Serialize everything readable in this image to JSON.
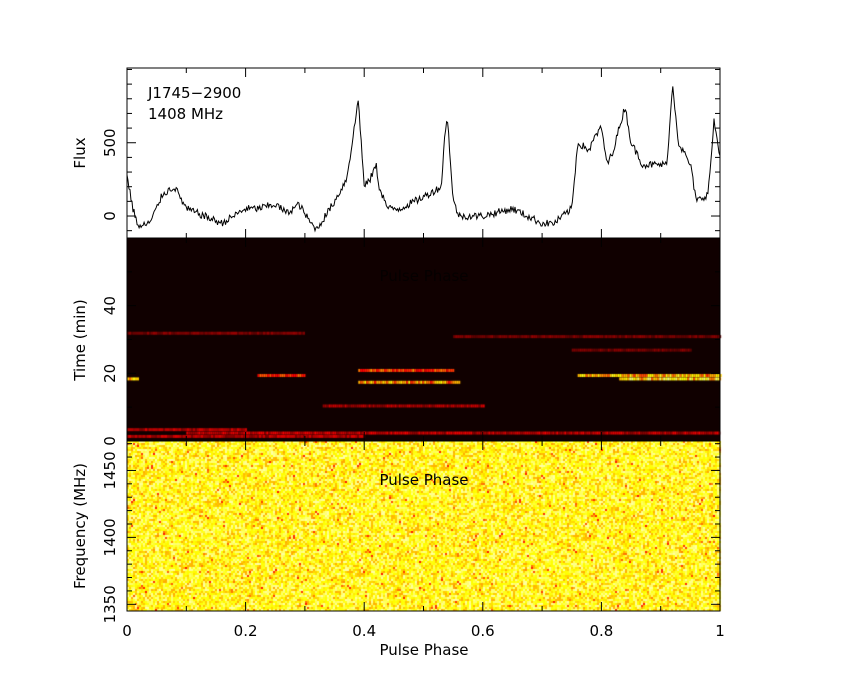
{
  "chart_data": [
    {
      "type": "line",
      "panel": "profile",
      "title_lines": [
        "J1745−2900",
        "1408 MHz"
      ],
      "ylabel": "Flux",
      "xlim": [
        0,
        1
      ],
      "ylim": [
        -150,
        1010
      ],
      "yticks": [
        0,
        500
      ],
      "x": [
        0,
        0.01,
        0.02,
        0.04,
        0.06,
        0.08,
        0.1,
        0.13,
        0.16,
        0.2,
        0.22,
        0.25,
        0.27,
        0.29,
        0.31,
        0.32,
        0.35,
        0.37,
        0.38,
        0.39,
        0.4,
        0.41,
        0.42,
        0.425,
        0.44,
        0.46,
        0.5,
        0.53,
        0.535,
        0.54,
        0.55,
        0.56,
        0.6,
        0.65,
        0.7,
        0.72,
        0.75,
        0.76,
        0.78,
        0.79,
        0.8,
        0.81,
        0.82,
        0.83,
        0.84,
        0.85,
        0.87,
        0.9,
        0.91,
        0.915,
        0.92,
        0.93,
        0.95,
        0.96,
        0.98,
        0.99,
        1.0
      ],
      "values": [
        280,
        50,
        -80,
        -40,
        150,
        200,
        50,
        0,
        -50,
        50,
        50,
        80,
        20,
        80,
        -50,
        -90,
        100,
        250,
        500,
        800,
        200,
        250,
        350,
        200,
        50,
        50,
        130,
        200,
        500,
        700,
        100,
        0,
        0,
        50,
        -50,
        -50,
        50,
        500,
        450,
        550,
        600,
        350,
        450,
        600,
        750,
        500,
        350,
        350,
        350,
        600,
        900,
        500,
        350,
        100,
        150,
        650,
        400
      ]
    },
    {
      "type": "heatmap",
      "panel": "time-phase",
      "ylabel": "Time (min)",
      "inner_label": "Pulse Phase",
      "xlim": [
        0,
        1
      ],
      "ylim": [
        0,
        60
      ],
      "yticks": [
        0,
        20,
        40
      ],
      "streaks": [
        {
          "time": 18.5,
          "phase": [
            0.0,
            0.02
          ],
          "intensity": 0.8
        },
        {
          "time": 19.5,
          "phase": [
            0.22,
            0.3
          ],
          "intensity": 0.55
        },
        {
          "time": 21,
          "phase": [
            0.39,
            0.55
          ],
          "intensity": 0.6
        },
        {
          "time": 17.5,
          "phase": [
            0.39,
            0.56
          ],
          "intensity": 0.75
        },
        {
          "time": 19.5,
          "phase": [
            0.76,
            1.0
          ],
          "intensity": 0.85
        },
        {
          "time": 18.5,
          "phase": [
            0.83,
            1.0
          ],
          "intensity": 0.95
        },
        {
          "time": 31,
          "phase": [
            0.55,
            1.0
          ],
          "intensity": 0.2
        },
        {
          "time": 32,
          "phase": [
            0.0,
            0.3
          ],
          "intensity": 0.2
        },
        {
          "time": 10.5,
          "phase": [
            0.33,
            0.6
          ],
          "intensity": 0.3
        },
        {
          "time": 2.5,
          "phase": [
            0.1,
            1.0
          ],
          "intensity": 0.35
        },
        {
          "time": 1.5,
          "phase": [
            0.0,
            0.4
          ],
          "intensity": 0.3
        },
        {
          "time": 3.5,
          "phase": [
            0.0,
            0.2
          ],
          "intensity": 0.3
        },
        {
          "time": 27,
          "phase": [
            0.75,
            0.95
          ],
          "intensity": 0.2
        }
      ]
    },
    {
      "type": "heatmap",
      "panel": "frequency-phase",
      "ylabel": "Frequency (MHz)",
      "inner_label": "Pulse Phase",
      "xlabel": "Pulse Phase",
      "xlim": [
        0,
        1
      ],
      "ylim": [
        1345,
        1472
      ],
      "yticks": [
        1350,
        1400,
        1450
      ],
      "xticks": [
        "0",
        "0.2",
        "0.4",
        "0.6",
        "0.8",
        "1"
      ]
    }
  ],
  "colors": {
    "background_dark": "#100000",
    "line": "#000000"
  }
}
